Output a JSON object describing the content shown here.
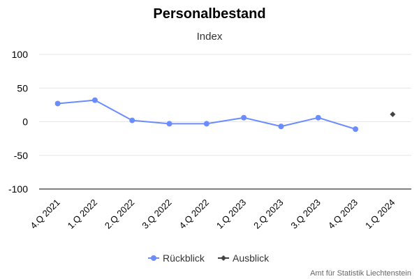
{
  "chart_data": {
    "type": "line",
    "title": "Personalbestand",
    "subtitle": "Index",
    "categories": [
      "4.Q 2021",
      "1.Q 2022",
      "2.Q 2022",
      "3.Q 2022",
      "4.Q 2022",
      "1.Q 2023",
      "2.Q 2023",
      "3.Q 2023",
      "4.Q 2023",
      "1.Q 2024"
    ],
    "series": [
      {
        "name": "Rückblick",
        "color": "#6b8cff",
        "marker": "circle",
        "values": [
          27,
          32,
          2,
          -3,
          -3,
          6,
          -7,
          6,
          -11,
          null
        ]
      },
      {
        "name": "Ausblick",
        "color": "#434348",
        "marker": "diamond",
        "values": [
          null,
          null,
          null,
          null,
          null,
          null,
          null,
          null,
          null,
          11
        ]
      }
    ],
    "ylim": [
      -100,
      100
    ],
    "yticks": [
      100,
      50,
      0,
      -50,
      -100
    ],
    "grid": true,
    "legend": "bottom-center",
    "credit": "Amt für Statistik Liechtenstein"
  }
}
